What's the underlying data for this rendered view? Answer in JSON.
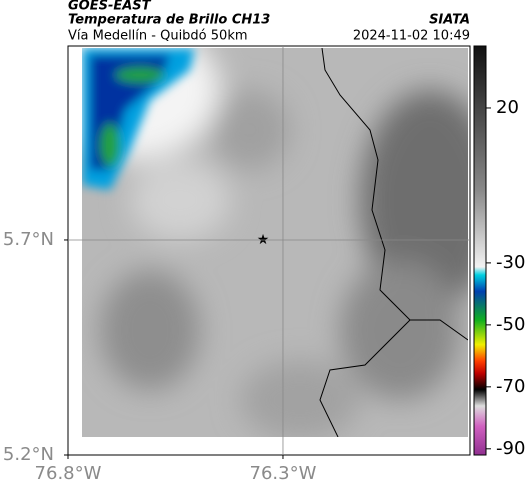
{
  "header": {
    "title": "GOES-EAST",
    "subtitle": "Temperatura de Brillo CH13",
    "route": "Vía Medellín - Quibdó 50km",
    "source": "SIATA",
    "datetime": "2024-11-02 10:49"
  },
  "map": {
    "xlim": [
      -76.8,
      -75.865
    ],
    "ylim": [
      5.2,
      6.151
    ],
    "xticks": [
      {
        "value": -76.8,
        "label": "76.8°W"
      },
      {
        "value": -76.3,
        "label": "76.3°W"
      }
    ],
    "yticks": [
      {
        "value": 5.7,
        "label": "5.7°N"
      },
      {
        "value": 5.2,
        "label": "5.2°N"
      }
    ]
  },
  "colorbar": {
    "lim": [
      -92,
      40
    ],
    "ticks": [
      20,
      -30,
      -50,
      -70,
      -90
    ]
  }
}
